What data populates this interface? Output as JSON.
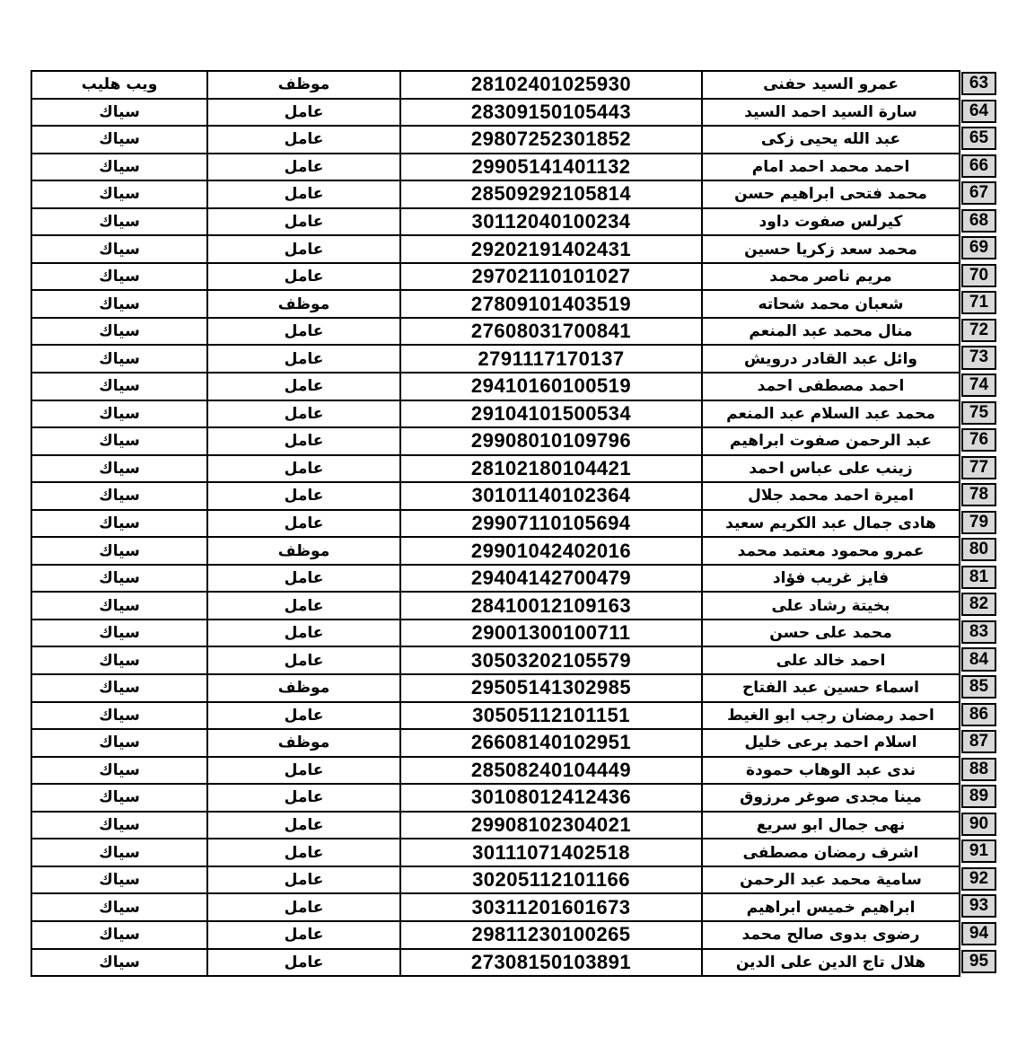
{
  "document": {
    "type": "employee-roster-table",
    "language": "ar",
    "columns_rtl": [
      "row_no",
      "name",
      "national_id",
      "job",
      "company"
    ],
    "job_values_seen": [
      "موظف",
      "عامل"
    ],
    "company_values_seen": [
      "ويب هليب",
      "سياك"
    ]
  },
  "colors": {
    "page_bg": "#ffffff",
    "cell_bg": "#ffffff",
    "row_no_bg": "#d9d9d9",
    "border": "#000000",
    "text": "#000000"
  },
  "table": {
    "rows": [
      {
        "no": "63",
        "name": "عمرو السيد حفنى",
        "id": "28102401025930",
        "job": "موظف",
        "company": "ويب هليب"
      },
      {
        "no": "64",
        "name": "سارة السيد احمد السيد",
        "id": "28309150105443",
        "job": "عامل",
        "company": "سياك"
      },
      {
        "no": "65",
        "name": "عبد الله يحيى زكى",
        "id": "29807252301852",
        "job": "عامل",
        "company": "سياك"
      },
      {
        "no": "66",
        "name": "احمد محمد احمد امام",
        "id": "29905141401132",
        "job": "عامل",
        "company": "سياك"
      },
      {
        "no": "67",
        "name": "محمد فتحى ابراهيم حسن",
        "id": "28509292105814",
        "job": "عامل",
        "company": "سياك"
      },
      {
        "no": "68",
        "name": "كيرلس صفوت داود",
        "id": "30112040100234",
        "job": "عامل",
        "company": "سياك"
      },
      {
        "no": "69",
        "name": "محمد سعد زكريا حسين",
        "id": "29202191402431",
        "job": "عامل",
        "company": "سياك"
      },
      {
        "no": "70",
        "name": "مريم ناصر محمد",
        "id": "29702110101027",
        "job": "عامل",
        "company": "سياك"
      },
      {
        "no": "71",
        "name": "شعبان محمد شحاته",
        "id": "27809101403519",
        "job": "موظف",
        "company": "سياك"
      },
      {
        "no": "72",
        "name": "منال محمد عبد المنعم",
        "id": "27608031700841",
        "job": "عامل",
        "company": "سياك"
      },
      {
        "no": "73",
        "name": "وائل عبد القادر درويش",
        "id": "2791117170137",
        "job": "عامل",
        "company": "سياك"
      },
      {
        "no": "74",
        "name": "احمد مصطفى احمد",
        "id": "29410160100519",
        "job": "عامل",
        "company": "سياك"
      },
      {
        "no": "75",
        "name": "محمد عبد السلام عبد المنعم",
        "id": "29104101500534",
        "job": "عامل",
        "company": "سياك"
      },
      {
        "no": "76",
        "name": "عبد الرحمن صفوت ابراهيم",
        "id": "29908010109796",
        "job": "عامل",
        "company": "سياك"
      },
      {
        "no": "77",
        "name": "زينب على عباس احمد",
        "id": "28102180104421",
        "job": "عامل",
        "company": "سياك"
      },
      {
        "no": "78",
        "name": "اميرة احمد محمد جلال",
        "id": "30101140102364",
        "job": "عامل",
        "company": "سياك"
      },
      {
        "no": "79",
        "name": "هادى جمال عبد الكريم سعيد",
        "id": "29907110105694",
        "job": "عامل",
        "company": "سياك"
      },
      {
        "no": "80",
        "name": "عمرو محمود معتمد محمد",
        "id": "29901042402016",
        "job": "موظف",
        "company": "سياك"
      },
      {
        "no": "81",
        "name": "فايز غريب فؤاد",
        "id": "29404142700479",
        "job": "عامل",
        "company": "سياك"
      },
      {
        "no": "82",
        "name": "بخيتة رشاد على",
        "id": "28410012109163",
        "job": "عامل",
        "company": "سياك"
      },
      {
        "no": "83",
        "name": "محمد على حسن",
        "id": "29001300100711",
        "job": "عامل",
        "company": "سياك"
      },
      {
        "no": "84",
        "name": "احمد خالد على",
        "id": "30503202105579",
        "job": "عامل",
        "company": "سياك"
      },
      {
        "no": "85",
        "name": "اسماء حسين عبد الفتاح",
        "id": "29505141302985",
        "job": "موظف",
        "company": "سياك"
      },
      {
        "no": "86",
        "name": "احمد رمضان رجب ابو الغيط",
        "id": "30505112101151",
        "job": "عامل",
        "company": "سياك"
      },
      {
        "no": "87",
        "name": "اسلام احمد برعى خليل",
        "id": "26608140102951",
        "job": "موظف",
        "company": "سياك"
      },
      {
        "no": "88",
        "name": "ندى عبد الوهاب حمودة",
        "id": "28508240104449",
        "job": "عامل",
        "company": "سياك"
      },
      {
        "no": "89",
        "name": "مينا مجدى صوغر مرزوق",
        "id": "30108012412436",
        "job": "عامل",
        "company": "سياك"
      },
      {
        "no": "90",
        "name": "نهى جمال ابو سريع",
        "id": "29908102304021",
        "job": "عامل",
        "company": "سياك"
      },
      {
        "no": "91",
        "name": "اشرف رمضان مصطفى",
        "id": "30111071402518",
        "job": "عامل",
        "company": "سياك"
      },
      {
        "no": "92",
        "name": "سامية محمد عبد الرحمن",
        "id": "30205112101166",
        "job": "عامل",
        "company": "سياك"
      },
      {
        "no": "93",
        "name": "ابراهيم خميس ابراهيم",
        "id": "30311201601673",
        "job": "عامل",
        "company": "سياك"
      },
      {
        "no": "94",
        "name": "رضوى بدوى صالح محمد",
        "id": "29811230100265",
        "job": "عامل",
        "company": "سياك"
      },
      {
        "no": "95",
        "name": "هلال تاج الدين على الدين",
        "id": "27308150103891",
        "job": "عامل",
        "company": "سياك"
      }
    ]
  }
}
